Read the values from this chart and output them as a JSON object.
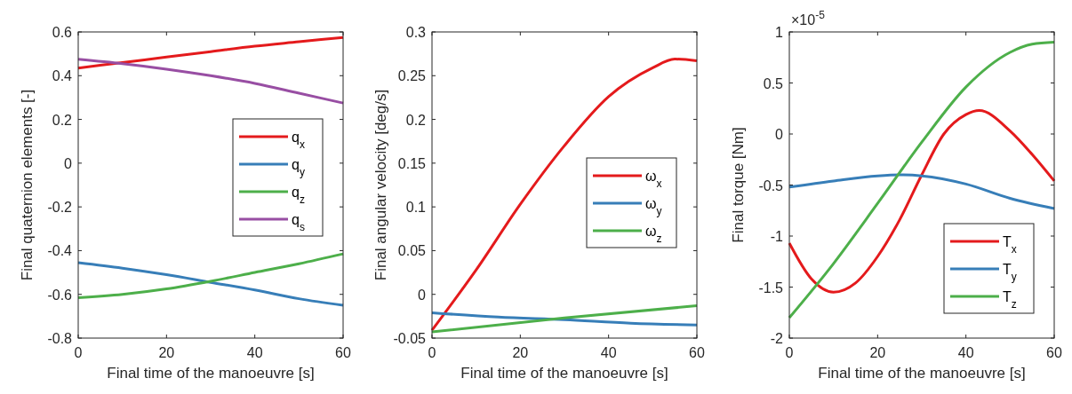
{
  "chart_data": [
    {
      "type": "line",
      "xlabel": "Final time of the manoeuvre [s]",
      "ylabel": "Final quaternion elements [-]",
      "xlim": [
        0,
        60
      ],
      "xticks": [
        0,
        20,
        40,
        60
      ],
      "ylim": [
        -0.8,
        0.6
      ],
      "yticks": [
        -0.8,
        -0.6,
        -0.4,
        -0.2,
        0,
        0.2,
        0.4,
        0.6
      ],
      "grid": false,
      "legend": "right",
      "marker": "none",
      "line_style": "solid",
      "x": [
        0,
        10,
        20,
        30,
        40,
        50,
        60
      ],
      "series": [
        {
          "name": "q$_{x}$",
          "color": "#e41a1c",
          "values": [
            0.435,
            0.46,
            0.485,
            0.51,
            0.535,
            0.555,
            0.575
          ]
        },
        {
          "name": "q$_{y}$",
          "color": "#377eb8",
          "values": [
            -0.455,
            -0.48,
            -0.51,
            -0.545,
            -0.58,
            -0.62,
            -0.65
          ]
        },
        {
          "name": "q$_{z}$",
          "color": "#4daf4a",
          "values": [
            -0.615,
            -0.6,
            -0.575,
            -0.54,
            -0.5,
            -0.46,
            -0.415
          ]
        },
        {
          "name": "q$_{s}$",
          "color": "#984ea3",
          "values": [
            0.475,
            0.455,
            0.43,
            0.4,
            0.365,
            0.32,
            0.275
          ]
        }
      ]
    },
    {
      "type": "line",
      "xlabel": "Final time of the manoeuvre [s]",
      "ylabel": "Final angular velocity [deg/s]",
      "xlim": [
        0,
        60
      ],
      "xticks": [
        0,
        20,
        40,
        60
      ],
      "ylim": [
        -0.05,
        0.3
      ],
      "yticks": [
        -0.05,
        0,
        0.05,
        0.1,
        0.15,
        0.2,
        0.25,
        0.3
      ],
      "grid": false,
      "legend": "right",
      "marker": "none",
      "line_style": "solid",
      "series": [
        {
          "name": "ω$_{x}$",
          "color": "#e41a1c",
          "x": [
            0,
            10,
            20,
            30,
            40,
            50,
            55,
            60
          ],
          "values": [
            -0.041,
            0.028,
            0.103,
            0.17,
            0.226,
            0.259,
            0.269,
            0.267
          ]
        },
        {
          "name": "ω$_{y}$",
          "color": "#377eb8",
          "x": [
            0,
            15,
            30,
            45,
            60
          ],
          "values": [
            -0.021,
            -0.026,
            -0.029,
            -0.033,
            -0.035
          ]
        },
        {
          "name": "ω$_{z}$",
          "color": "#4daf4a",
          "x": [
            0,
            30,
            60
          ],
          "values": [
            -0.043,
            -0.027,
            -0.013
          ]
        }
      ]
    },
    {
      "type": "line",
      "xlabel": "Final time of the manoeuvre [s]",
      "ylabel": "Final torque [Nm]",
      "annotations": [
        "×10$^{-5}$"
      ],
      "xlim": [
        0,
        60
      ],
      "xticks": [
        0,
        20,
        40,
        60
      ],
      "ylim": [
        -2,
        1
      ],
      "yticks": [
        -2,
        -1.5,
        -1,
        -0.5,
        0,
        0.5,
        1
      ],
      "grid": false,
      "legend": "bottom right",
      "marker": "none",
      "line_style": "solid",
      "series": [
        {
          "name": "T$_{x}$",
          "color": "#e41a1c",
          "x": [
            0,
            5,
            10,
            15,
            20,
            25,
            30,
            35,
            40,
            43,
            50,
            55,
            60
          ],
          "values": [
            -1.07,
            -1.42,
            -1.55,
            -1.46,
            -1.2,
            -0.84,
            -0.4,
            0,
            0.19,
            0.23,
            0.03,
            -0.2,
            -0.46
          ]
        },
        {
          "name": "T$_{y}$",
          "color": "#377eb8",
          "x": [
            0,
            10,
            20,
            25,
            30,
            40,
            50,
            60
          ],
          "values": [
            -0.52,
            -0.46,
            -0.41,
            -0.4,
            -0.41,
            -0.49,
            -0.63,
            -0.73
          ]
        },
        {
          "name": "T$_{z}$",
          "color": "#4daf4a",
          "x": [
            0,
            10,
            20,
            30,
            40,
            50,
            55,
            60
          ],
          "values": [
            -1.8,
            -1.27,
            -0.68,
            -0.08,
            0.46,
            0.8,
            0.88,
            0.9
          ]
        }
      ]
    }
  ]
}
